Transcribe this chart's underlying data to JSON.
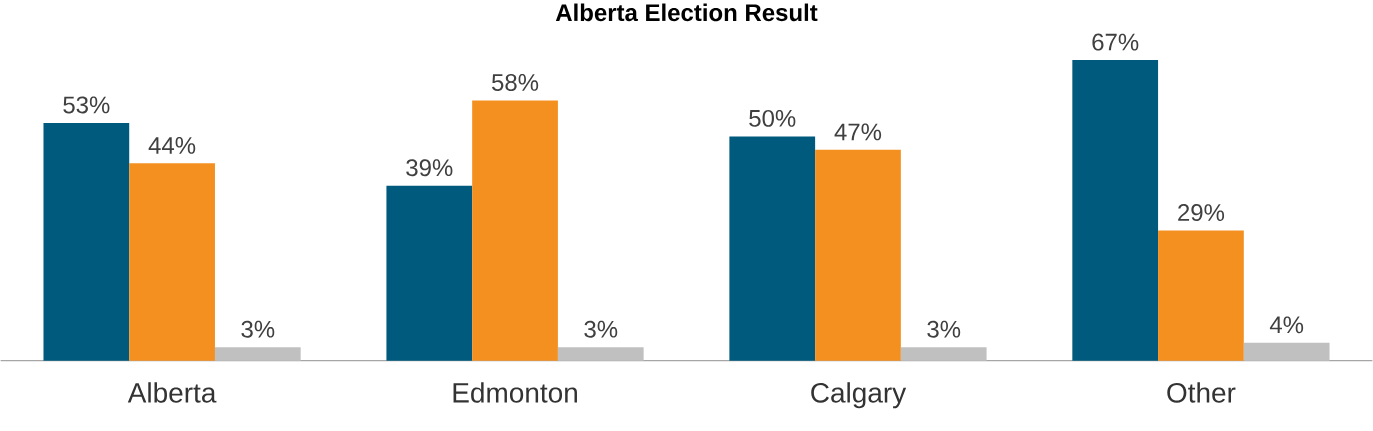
{
  "chart_data": {
    "type": "bar",
    "title": "Alberta Election Result",
    "categories": [
      "Alberta",
      "Edmonton",
      "Calgary",
      "Other"
    ],
    "series": [
      {
        "color": "#005a7d",
        "values": [
          53,
          39,
          50,
          67
        ],
        "value_labels": [
          "53%",
          "39%",
          "50%",
          "67%"
        ]
      },
      {
        "color": "#f39020",
        "values": [
          44,
          58,
          47,
          29
        ],
        "value_labels": [
          "44%",
          "58%",
          "47%",
          "29%"
        ]
      },
      {
        "color": "#c0c0c0",
        "values": [
          3,
          3,
          3,
          4
        ],
        "value_labels": [
          "3%",
          "3%",
          "3%",
          "4%"
        ]
      }
    ],
    "tick_labels": "x"
  }
}
